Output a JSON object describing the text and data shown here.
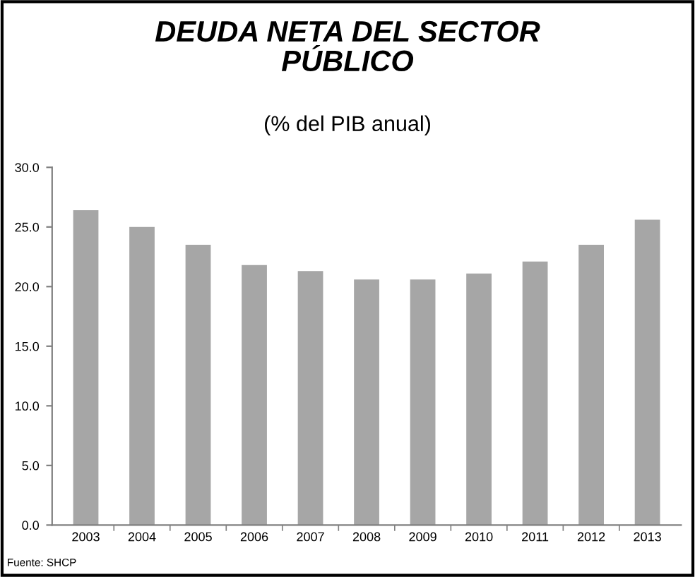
{
  "chart_data": {
    "type": "bar",
    "title": "DEUDA NETA DEL SECTOR\nPÚBLICO",
    "subtitle": "(% del PIB anual)",
    "categories": [
      "2003",
      "2004",
      "2005",
      "2006",
      "2007",
      "2008",
      "2009",
      "2010",
      "2011",
      "2012",
      "2013"
    ],
    "values": [
      26.4,
      25.0,
      23.5,
      21.8,
      21.3,
      20.6,
      20.6,
      21.1,
      22.1,
      23.5,
      25.6
    ],
    "color": "#a6a6a6",
    "ylim": [
      0,
      30
    ],
    "yticks": [
      {
        "value": 0,
        "label": "0.0"
      },
      {
        "value": 5,
        "label": "5.0"
      },
      {
        "value": 10,
        "label": "10.0"
      },
      {
        "value": 15,
        "label": "15.0"
      },
      {
        "value": 20,
        "label": "20.0"
      },
      {
        "value": 25,
        "label": "25.0"
      },
      {
        "value": 30,
        "label": "30.0"
      }
    ],
    "grid": false,
    "annotations": [
      "Fuente: SHCP"
    ]
  }
}
